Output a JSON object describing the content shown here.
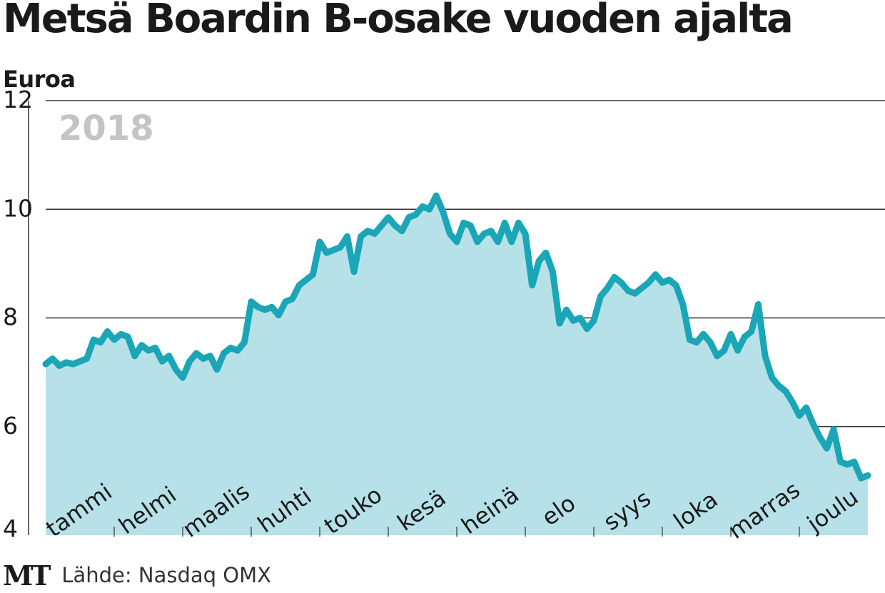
{
  "chart_data": {
    "type": "area",
    "title": "Metsä Boardin B-osake vuoden ajalta",
    "ylabel": "Euroa",
    "year_label": "2018",
    "source": "Lähde: Nasdaq OMX",
    "logo": "MT",
    "ylim": [
      4,
      12
    ],
    "yticks": [
      4,
      6,
      8,
      10,
      12
    ],
    "grid": true,
    "months": [
      "tammi",
      "helmi",
      "maalis",
      "huhti",
      "touko",
      "kesä",
      "heinä",
      "elo",
      "syys",
      "loka",
      "marras",
      "joulu"
    ],
    "series": [
      {
        "values": [
          7.15,
          7.25,
          7.12,
          7.18,
          7.15,
          7.2,
          7.25,
          7.6,
          7.55,
          7.75,
          7.6,
          7.7,
          7.65,
          7.3,
          7.5,
          7.4,
          7.45,
          7.2,
          7.3,
          7.05,
          6.9,
          7.2,
          7.35,
          7.25,
          7.3,
          7.05,
          7.35,
          7.45,
          7.4,
          7.55,
          8.3,
          8.2,
          8.15,
          8.2,
          8.05,
          8.3,
          8.35,
          8.6,
          8.7,
          8.8,
          9.4,
          9.2,
          9.25,
          9.3,
          9.5,
          8.85,
          9.5,
          9.6,
          9.55,
          9.7,
          9.85,
          9.7,
          9.6,
          9.85,
          9.9,
          10.05,
          10.0,
          10.25,
          9.95,
          9.55,
          9.4,
          9.75,
          9.7,
          9.4,
          9.55,
          9.6,
          9.4,
          9.75,
          9.4,
          9.75,
          9.55,
          8.6,
          9.05,
          9.2,
          8.85,
          7.9,
          8.15,
          7.95,
          8.0,
          7.8,
          7.95,
          8.4,
          8.55,
          8.75,
          8.65,
          8.5,
          8.45,
          8.55,
          8.65,
          8.8,
          8.65,
          8.7,
          8.6,
          8.25,
          7.6,
          7.55,
          7.7,
          7.55,
          7.3,
          7.4,
          7.7,
          7.4,
          7.65,
          7.75,
          8.25,
          7.3,
          6.9,
          6.75,
          6.65,
          6.45,
          6.2,
          6.35,
          6.05,
          5.8,
          5.6,
          5.95,
          5.35,
          5.3,
          5.35,
          5.05,
          5.1
        ],
        "color": "#1aa6b7",
        "fill": "#b7e1e8"
      }
    ],
    "colors": {
      "line": "#1aa6b7",
      "area": "#b7e1e8",
      "grid": "#333333",
      "year": "#c4c4c4"
    }
  }
}
